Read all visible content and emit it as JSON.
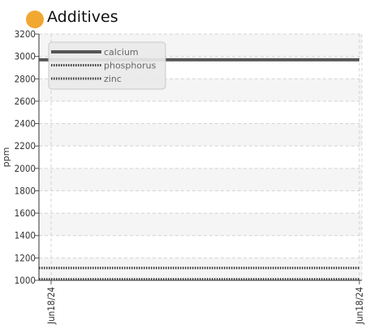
{
  "header": {
    "title": "Additives",
    "dot_color": "#f0a830"
  },
  "chart_data": {
    "type": "line",
    "title": "Additives",
    "ylabel": "ppm",
    "xlabel": "",
    "ylim": [
      1000,
      3200
    ],
    "yticks": [
      1000,
      1200,
      1400,
      1600,
      1800,
      2000,
      2200,
      2400,
      2600,
      2800,
      3000,
      3200
    ],
    "x": [
      "Jun18/24",
      "Jun18/24"
    ],
    "grid": true,
    "legend_position": "top-left",
    "series": [
      {
        "name": "calcium",
        "values": [
          2970,
          2970
        ],
        "style": "solid",
        "color": "#555555"
      },
      {
        "name": "phosphorus",
        "values": [
          1110,
          1110
        ],
        "style": "dotted",
        "color": "#444444"
      },
      {
        "name": "zinc",
        "values": [
          1010,
          1010
        ],
        "style": "dotted",
        "color": "#444444"
      }
    ]
  }
}
